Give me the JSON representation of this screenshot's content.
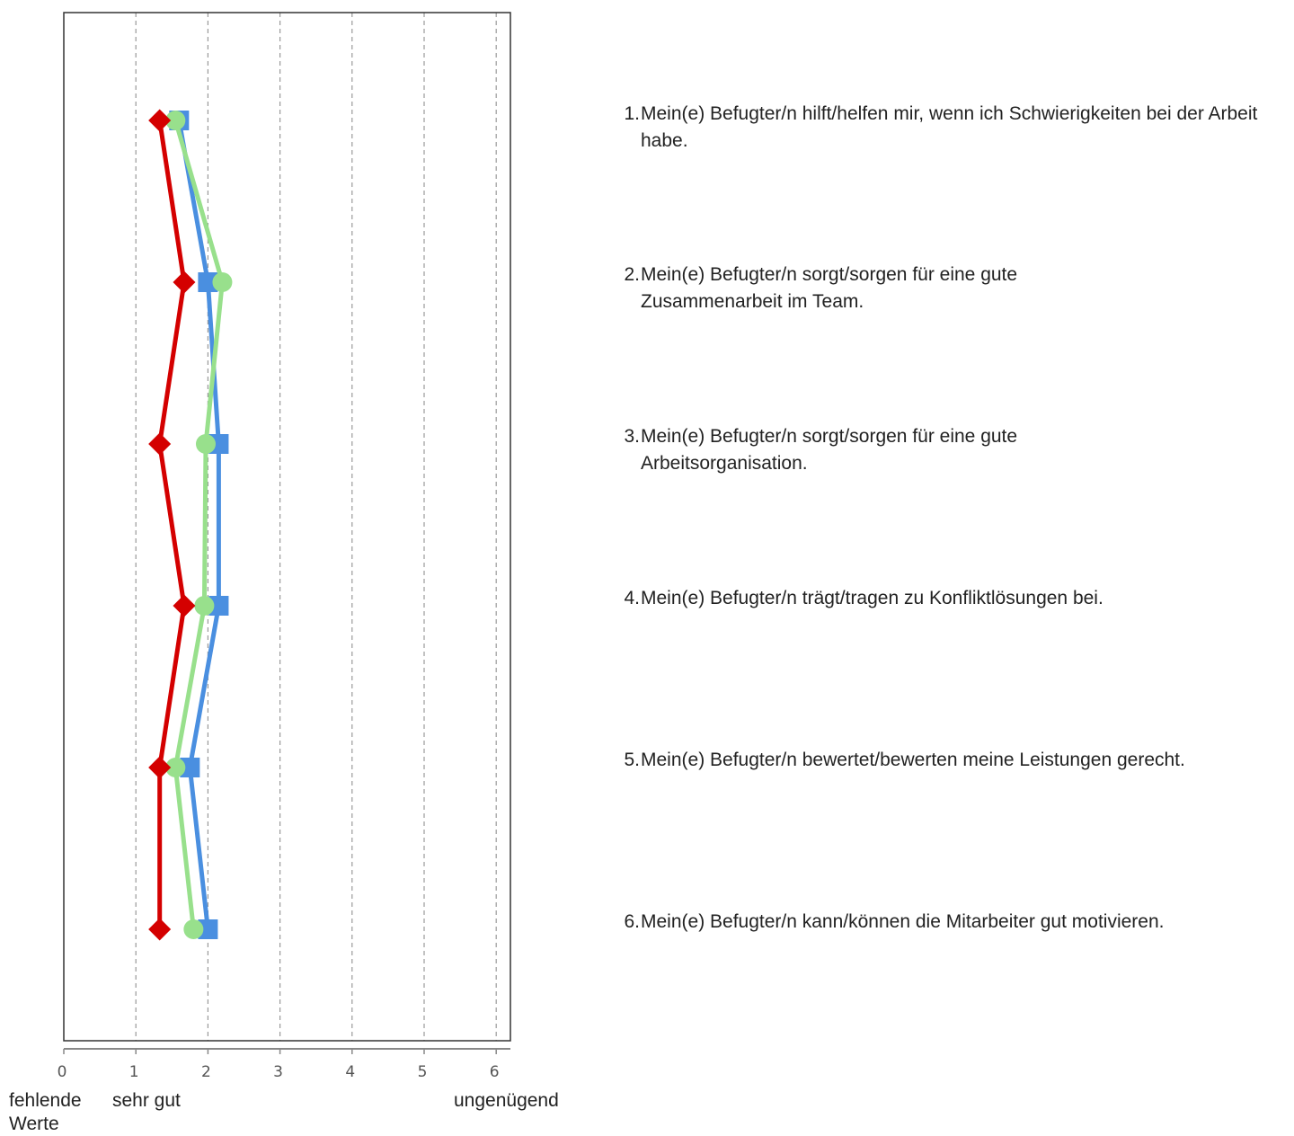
{
  "chart_data": {
    "type": "line",
    "orientation": "vertical-profile",
    "x_ticks": [
      "0",
      "1",
      "2",
      "3",
      "4",
      "5",
      "6"
    ],
    "xlim": [
      0,
      6.2
    ],
    "grid": "vertical dashed",
    "scale_labels": {
      "zero": "fehlende Werte",
      "one": "sehr gut",
      "six": "ungenügend"
    },
    "items": [
      "Mein(e) Befugter/n hilft/helfen mir, wenn ich Schwierigkeiten bei der Arbeit habe.",
      "Mein(e) Befugter/n sorgt/sorgen für eine gute Zusammenarbeit im Team.",
      "Mein(e) Befugter/n sorgt/sorgen für eine gute Arbeitsorganisation.",
      "Mein(e) Befugter/n trägt/tragen zu Konfliktlösungen bei.",
      "Mein(e) Befugter/n bewertet/bewerten meine Leistungen gerecht.",
      "Mein(e) Befugter/n  kann/können die Mitarbeiter gut motivieren."
    ],
    "item_numbers": [
      "1.",
      "2.",
      "3.",
      "4.",
      "5.",
      "6."
    ],
    "series": [
      {
        "marker": "square",
        "color": "#4a8fe0",
        "values": [
          1.6,
          2.0,
          2.15,
          2.15,
          1.75,
          2.0
        ]
      },
      {
        "marker": "circle",
        "color": "#98e08c",
        "values": [
          1.55,
          2.2,
          1.97,
          1.95,
          1.55,
          1.8
        ]
      },
      {
        "marker": "diamond",
        "color": "#d40000",
        "values": [
          1.33,
          1.67,
          1.33,
          1.67,
          1.33,
          1.33
        ]
      }
    ]
  },
  "statements": [
    {
      "num": "1.",
      "text": "Mein(e) Befugter/n hilft/helfen mir, wenn ich Schwierigkeiten bei der Arbeit habe."
    },
    {
      "num": "2.",
      "text": "Mein(e) Befugter/n sorgt/sorgen für eine gute Zusammenarbeit im Team."
    },
    {
      "num": "3.",
      "text": "Mein(e) Befugter/n sorgt/sorgen für eine gute Arbeitsorganisation."
    },
    {
      "num": "4.",
      "text": "Mein(e) Befugter/n trägt/tragen zu Konfliktlösungen bei."
    },
    {
      "num": "5.",
      "text": "Mein(e) Befugter/n bewertet/bewerten meine Leistungen gerecht."
    },
    {
      "num": "6.",
      "text": "Mein(e) Befugter/n  kann/können die Mitarbeiter gut motivieren."
    }
  ],
  "labels": {
    "missing_line1": "fehlende",
    "missing_line2": "Werte",
    "very_good": "sehr gut",
    "insufficient": "ungenügend"
  }
}
